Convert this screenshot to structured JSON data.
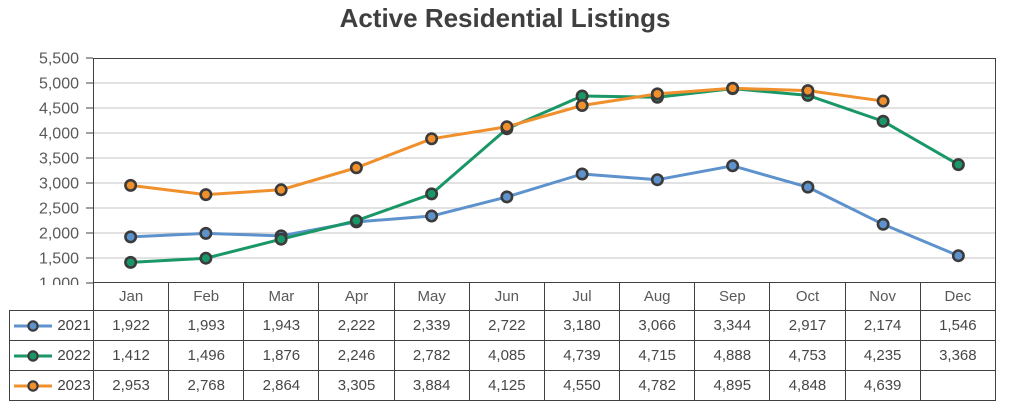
{
  "title": "Active Residential Listings",
  "chart_data": {
    "type": "line",
    "title": "Active Residential Listings",
    "categories": [
      "Jan",
      "Feb",
      "Mar",
      "Apr",
      "May",
      "Jun",
      "Jul",
      "Aug",
      "Sep",
      "Oct",
      "Nov",
      "Dec"
    ],
    "series": [
      {
        "name": "2021",
        "color": "#5E92CC",
        "values": [
          1922,
          1993,
          1943,
          2222,
          2339,
          2722,
          3180,
          3066,
          3344,
          2917,
          2174,
          1546
        ]
      },
      {
        "name": "2022",
        "color": "#1A9767",
        "values": [
          1412,
          1496,
          1876,
          2246,
          2782,
          4085,
          4739,
          4715,
          4888,
          4753,
          4235,
          3368
        ]
      },
      {
        "name": "2023",
        "color": "#F0902C",
        "values": [
          2953,
          2768,
          2864,
          3305,
          3884,
          4125,
          4550,
          4782,
          4895,
          4848,
          4639,
          null
        ]
      }
    ],
    "ylim": [
      1000,
      5500
    ],
    "ytick_values": [
      1000,
      1500,
      2000,
      2500,
      3000,
      3500,
      4000,
      4500,
      5000,
      5500
    ],
    "ytick_labels": [
      "1,000",
      "1,500",
      "2,000",
      "2,500",
      "3,000",
      "3,500",
      "4,000",
      "4,500",
      "5,000",
      "5,500"
    ],
    "grid": true,
    "legend_position": "table-left",
    "style": {
      "frame_color": "#404040",
      "grid_color": "#c6c6c6",
      "tick_label_color": "#595959",
      "marker_ring_color": "#3b3b3b",
      "line_width": 3,
      "marker_radius": 5.2
    }
  },
  "table": {
    "corner_label": "",
    "headers": [
      "Jan",
      "Feb",
      "Mar",
      "Apr",
      "May",
      "Jun",
      "Jul",
      "Aug",
      "Sep",
      "Oct",
      "Nov",
      "Dec"
    ],
    "rows": [
      {
        "label": "2021",
        "color": "#5E92CC",
        "cells": [
          "1,922",
          "1,993",
          "1,943",
          "2,222",
          "2,339",
          "2,722",
          "3,180",
          "3,066",
          "3,344",
          "2,917",
          "2,174",
          "1,546"
        ]
      },
      {
        "label": "2022",
        "color": "#1A9767",
        "cells": [
          "1,412",
          "1,496",
          "1,876",
          "2,246",
          "2,782",
          "4,085",
          "4,739",
          "4,715",
          "4,888",
          "4,753",
          "4,235",
          "3,368"
        ]
      },
      {
        "label": "2023",
        "color": "#F0902C",
        "cells": [
          "2,953",
          "2,768",
          "2,864",
          "3,305",
          "3,884",
          "4,125",
          "4,550",
          "4,782",
          "4,895",
          "4,848",
          "4,639",
          ""
        ]
      }
    ]
  }
}
